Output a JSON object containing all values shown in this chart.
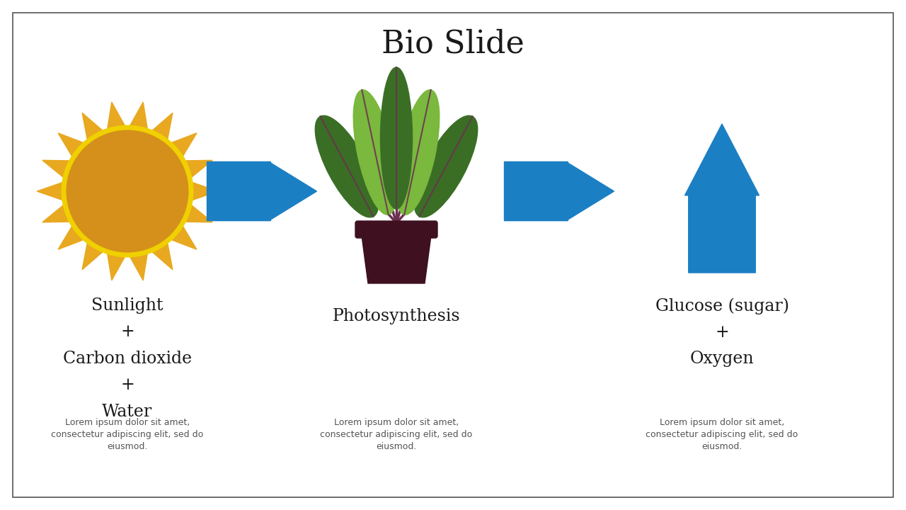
{
  "title": "Bio Slide",
  "title_fontsize": 32,
  "background_color": "#ffffff",
  "border_color": "#555555",
  "arrow_color": "#1b7fc4",
  "text_color": "#1a1a1a",
  "lorem_color": "#555555",
  "label1": "Sunlight\n+\nCarbon dioxide\n+\nWater",
  "label2": "Photosynthesis",
  "label3": "Glucose (sugar)\n+\nOxygen",
  "lorem": "Lorem ipsum dolor sit amet,\nconsectetur adipiscing elit, sed do\neiusmod.",
  "label_fontsize": 17,
  "lorem_fontsize": 9,
  "sun_ray_color": "#e8a820",
  "sun_body_color": "#d4901a",
  "sun_ring_color": "#f0d000",
  "plant_green_dark": "#3a6e25",
  "plant_green_light": "#7ab83e",
  "plant_pot_color": "#3e1020",
  "plant_stem_color": "#6b3050"
}
